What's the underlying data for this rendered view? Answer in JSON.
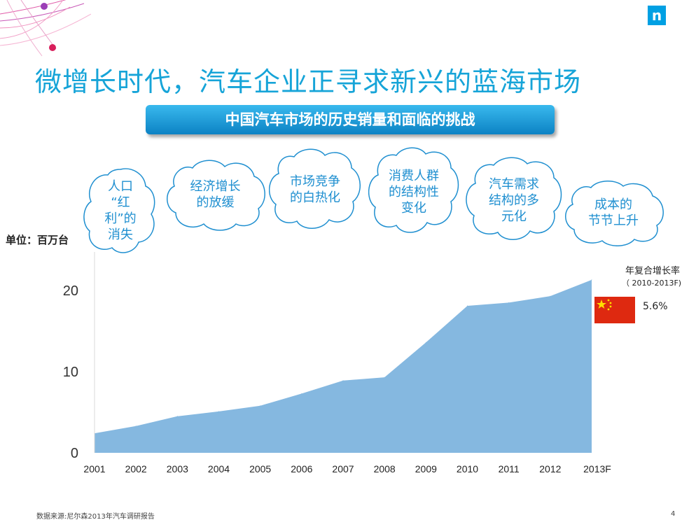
{
  "title": "微增长时代，汽车企业正寻求新兴的蓝海市场",
  "banner": "中国汽车市场的历史销量和面临的挑战",
  "unit_label": "单位：百万台",
  "clouds": [
    {
      "text": "人口\n“红\n利”的\n消失"
    },
    {
      "text": "经济增长\n的放缓"
    },
    {
      "text": "市场竞争\n的白热化"
    },
    {
      "text": "消费人群\n的结构性\n变化"
    },
    {
      "text": "汽车需求\n结构的多\n元化"
    },
    {
      "text": "成本的\n节节上升"
    }
  ],
  "cagr": {
    "title": "年复合增长率",
    "range": "（ 2010-2013F)",
    "value": "5.6%"
  },
  "source": "数据来源:尼尔森2013年汽车调研报告",
  "page_number": "4",
  "colors": {
    "accent": "#16a4d8",
    "area": "#85b8e0",
    "flag": "#de2910",
    "cloud_outline": "#1f8fd0"
  },
  "logo": {
    "text": "n"
  },
  "chart_data": {
    "type": "area",
    "categories": [
      "2001",
      "2002",
      "2003",
      "2004",
      "2005",
      "2006",
      "2007",
      "2008",
      "2009",
      "2010",
      "2011",
      "2012",
      "2013F"
    ],
    "series": [
      {
        "values": [
          2.4,
          3.3,
          4.5,
          5.1,
          5.8,
          7.3,
          8.9,
          9.3,
          13.6,
          18.1,
          18.5,
          19.3,
          21.3
        ]
      }
    ],
    "yticks": [
      0,
      10,
      20
    ],
    "ylim": [
      0,
      25
    ],
    "grid": false
  }
}
